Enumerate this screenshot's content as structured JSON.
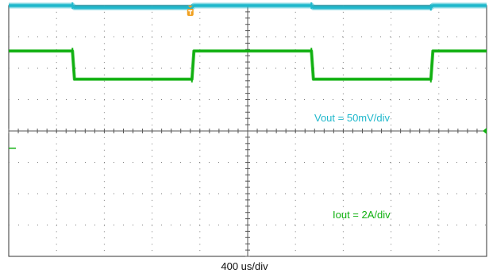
{
  "chart_data": {
    "type": "line",
    "title": "",
    "x_unit": "us",
    "x": [
      0,
      320,
      330,
      920,
      930,
      1520,
      1530,
      2120,
      2130,
      2400
    ],
    "series": [
      {
        "name": "Vout = 50mV/div",
        "color": "#20b8cc",
        "values": [
          4.0,
          4.0,
          3.94,
          3.94,
          4.0,
          4.0,
          3.94,
          3.94,
          4.0,
          4.0
        ]
      },
      {
        "name": "Iout = 2A/div",
        "color": "#10b010",
        "values": [
          2.55,
          2.55,
          1.65,
          1.65,
          2.55,
          2.55,
          1.65,
          1.65,
          2.55,
          2.55
        ]
      }
    ],
    "xlim": [
      0,
      2400
    ],
    "ylim": [
      -4,
      4
    ],
    "grid": true,
    "timebase_label": "400 us/div"
  },
  "colors": {
    "grid": "#7a7a7a",
    "trigger_marker": "#f0a020"
  }
}
